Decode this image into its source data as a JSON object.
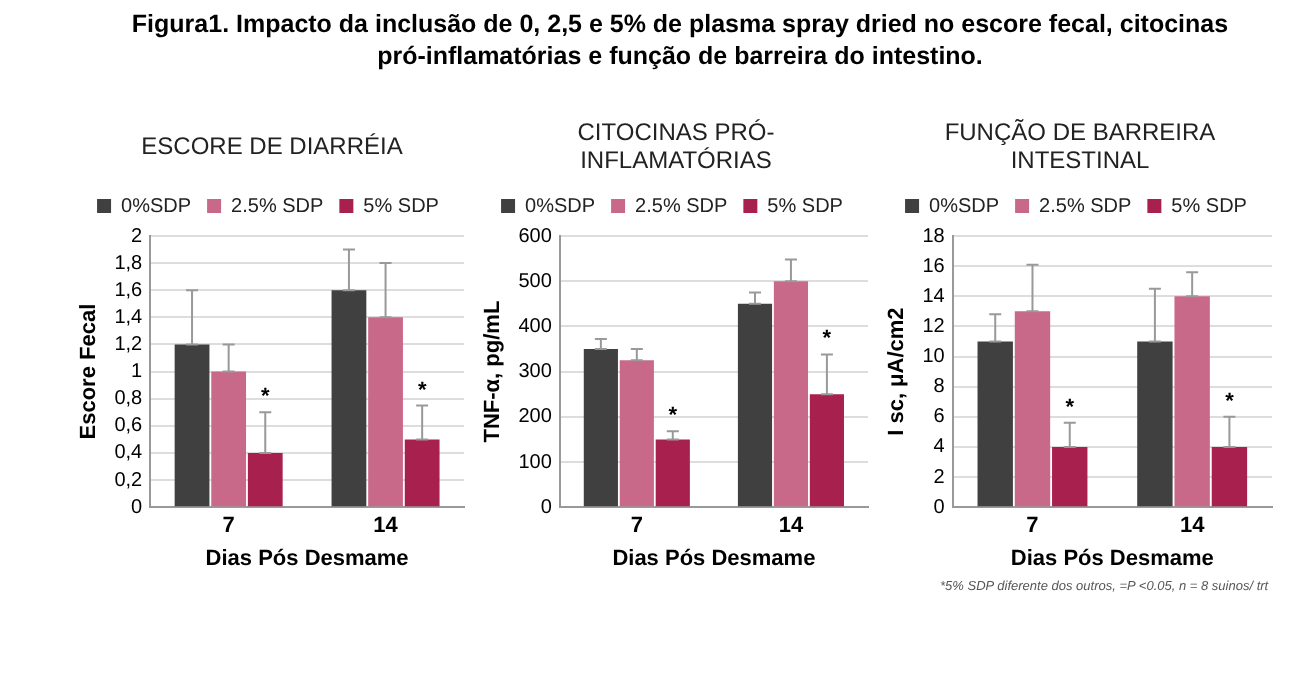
{
  "chart_data": [
    {
      "type": "bar",
      "title": "ESCORE DE DIARRÉIA",
      "xlabel": "Dias Pós Desmame",
      "ylabel": "Escore Fecal",
      "categories": [
        "7",
        "14"
      ],
      "series": [
        {
          "name": "0%SDP",
          "color": "#404040",
          "values": [
            1.2,
            1.6
          ],
          "errors": [
            [
              1.2,
              1.6
            ],
            [
              1.6,
              1.9
            ]
          ]
        },
        {
          "name": "2.5% SDP",
          "color": "#c9698a",
          "values": [
            1.0,
            1.4
          ],
          "errors": [
            [
              1.0,
              1.2
            ],
            [
              1.4,
              1.8
            ]
          ]
        },
        {
          "name": "5% SDP",
          "color": "#a8204e",
          "values": [
            0.4,
            0.5
          ],
          "errors": [
            [
              0.4,
              0.7
            ],
            [
              0.5,
              0.75
            ]
          ],
          "value_labels": [
            "*",
            "*"
          ]
        }
      ],
      "ylim": [
        0,
        2
      ],
      "yticks": [
        0,
        {
          "value": 0.2,
          "label": "0,2"
        },
        {
          "value": 0.4,
          "label": "0,4"
        },
        {
          "value": 0.6,
          "label": "0,6"
        },
        {
          "value": 0.8,
          "label": "0,8"
        },
        1,
        {
          "value": 1.2,
          "label": "1,2"
        },
        {
          "value": 1.4,
          "label": "1,4"
        },
        {
          "value": 1.6,
          "label": "1,6"
        },
        {
          "value": 1.8,
          "label": "1,8"
        },
        2
      ],
      "grid": "y",
      "legend": "top",
      "annotations": [
        "Figura1. Impacto da inclusão de 0, 2,5 e 5% de plasma spray dried no escore fecal, citocinas pró-inflamatórias e função de barreira do intestino."
      ]
    },
    {
      "type": "bar",
      "title": "CITOCINAS PRÓ-INFLAMATÓRIAS",
      "xlabel": "Dias Pós Desmame",
      "ylabel": "TNF-α, pg/mL",
      "categories": [
        "7",
        "14"
      ],
      "series": [
        {
          "name": "0%SDP",
          "color": "#404040",
          "values": [
            350,
            450
          ],
          "errors": [
            [
              350,
              372
            ],
            [
              450,
              475
            ]
          ]
        },
        {
          "name": "2.5% SDP",
          "color": "#c9698a",
          "values": [
            325,
            500
          ],
          "errors": [
            [
              325,
              350
            ],
            [
              500,
              548
            ]
          ]
        },
        {
          "name": "5% SDP",
          "color": "#a8204e",
          "values": [
            150,
            250
          ],
          "errors": [
            [
              150,
              168
            ],
            [
              250,
              338
            ]
          ],
          "value_labels": [
            "*",
            "*"
          ]
        }
      ],
      "ylim": [
        0,
        600
      ],
      "yticks": [
        0,
        100,
        200,
        300,
        400,
        500,
        600
      ],
      "grid": "y",
      "legend": "top"
    },
    {
      "type": "bar",
      "title": "FUNÇÃO DE BARREIRA INTESTINAL",
      "xlabel": "Dias Pós Desmame",
      "ylabel": "I sc, μA/cm2",
      "categories": [
        "7",
        "14"
      ],
      "series": [
        {
          "name": "0%SDP",
          "color": "#404040",
          "values": [
            11,
            11
          ],
          "errors": [
            [
              11,
              12.8
            ],
            [
              11,
              14.5
            ]
          ]
        },
        {
          "name": "2.5% SDP",
          "color": "#c9698a",
          "values": [
            13,
            14
          ],
          "errors": [
            [
              13,
              16.1
            ],
            [
              14,
              15.6
            ]
          ]
        },
        {
          "name": "5% SDP",
          "color": "#a8204e",
          "values": [
            4,
            4
          ],
          "errors": [
            [
              4,
              5.6
            ],
            [
              4,
              6
            ]
          ],
          "value_labels": [
            "*",
            "*"
          ]
        }
      ],
      "ylim": [
        0,
        18
      ],
      "yticks": [
        0,
        2,
        4,
        6,
        8,
        10,
        12,
        14,
        16,
        18
      ],
      "grid": "y",
      "legend": "top",
      "annotations": [
        "*5% SDP diferente dos outros, =P <0.05, n = 8 suinos/ trt"
      ]
    }
  ]
}
